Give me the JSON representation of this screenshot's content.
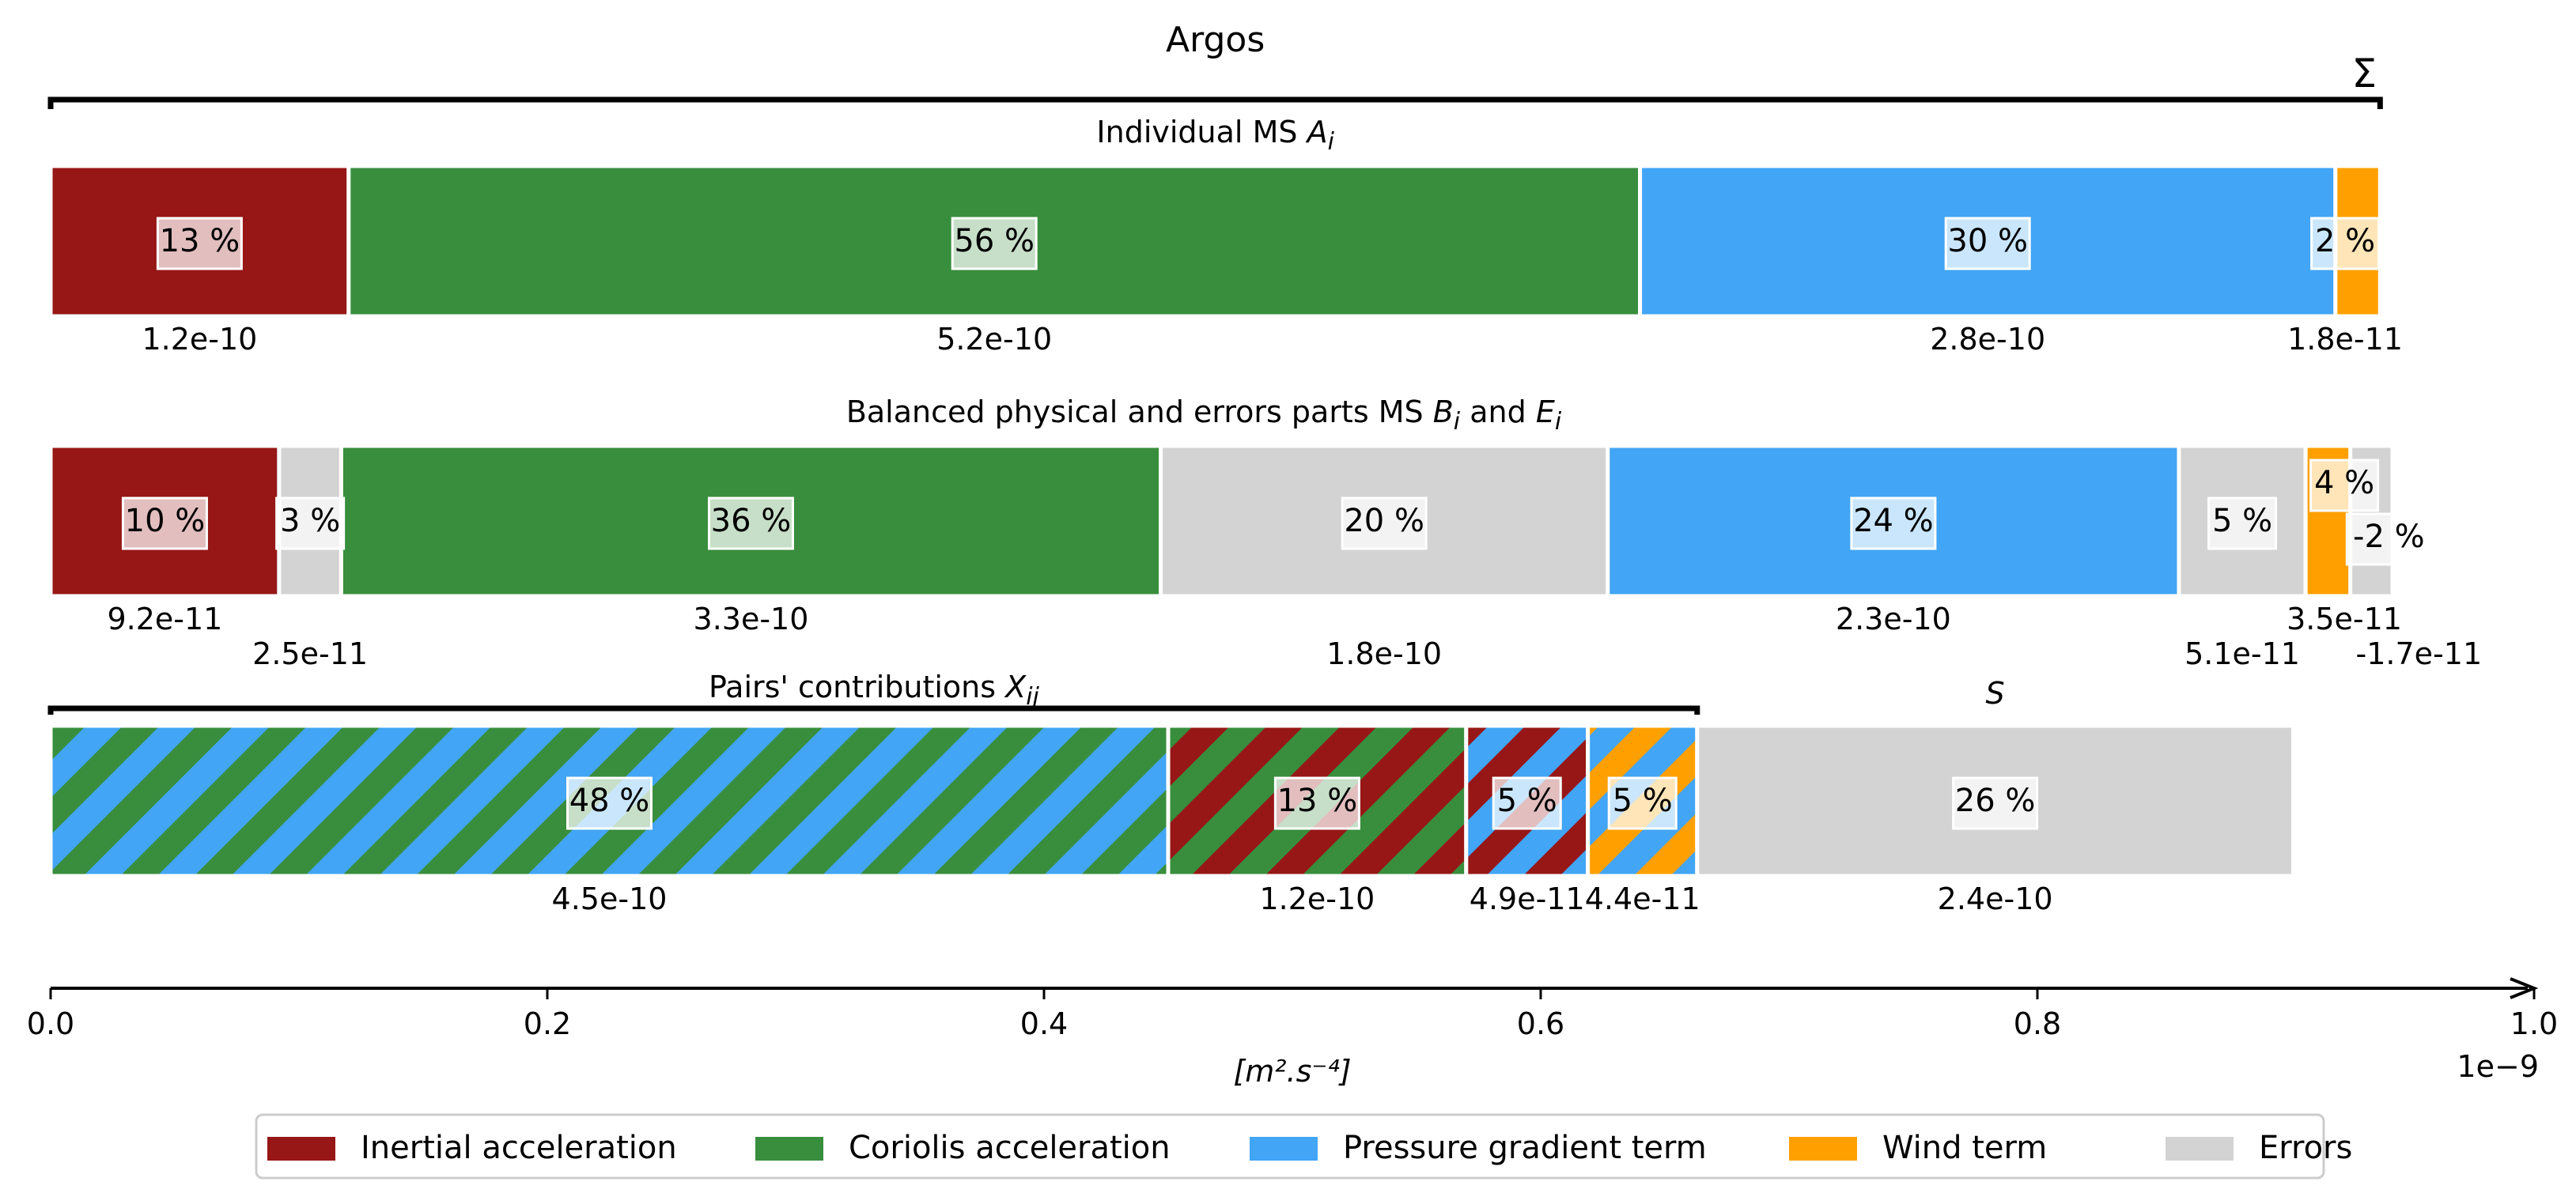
{
  "chart_data": {
    "type": "bar",
    "title": "Argos",
    "sigma_label": "Σ",
    "xlabel": "[m².s⁻⁴]",
    "x_offset_label": "1e−9",
    "xlim": [
      0,
      1e-09
    ],
    "xticks": [
      {
        "value": 0,
        "label": "0.0"
      },
      {
        "value": 2e-10,
        "label": "0.2"
      },
      {
        "value": 4e-10,
        "label": "0.4"
      },
      {
        "value": 6e-10,
        "label": "0.6"
      },
      {
        "value": 8e-10,
        "label": "0.8"
      },
      {
        "value": 1e-09,
        "label": "1.0"
      }
    ],
    "colors": {
      "inertial": "#971717",
      "coriolis": "#388e3c",
      "pressure": "#42a5f5",
      "wind": "#ffa000",
      "errors": "#d3d3d3"
    },
    "rows": [
      {
        "title": "Individual MS A_i",
        "segments": [
          {
            "colors": [
              "inertial"
            ],
            "value": 1.2e-10,
            "pct": "13 %",
            "label": "1.2e-10"
          },
          {
            "colors": [
              "coriolis"
            ],
            "value": 5.2e-10,
            "pct": "56 %",
            "label": "5.2e-10"
          },
          {
            "colors": [
              "pressure"
            ],
            "value": 2.8e-10,
            "pct": "30 %",
            "label": "2.8e-10"
          },
          {
            "colors": [
              "wind"
            ],
            "value": 1.8e-11,
            "pct": "2 %",
            "label": "1.8e-11"
          }
        ]
      },
      {
        "title": "Balanced physical and errors parts MS B_i and E_i",
        "segments": [
          {
            "colors": [
              "inertial"
            ],
            "value": 9.2e-11,
            "pct": "10 %",
            "label": "9.2e-11"
          },
          {
            "colors": [
              "errors"
            ],
            "value": 2.5e-11,
            "pct": "3 %",
            "label": "2.5e-11"
          },
          {
            "colors": [
              "coriolis"
            ],
            "value": 3.3e-10,
            "pct": "36 %",
            "label": "3.3e-10"
          },
          {
            "colors": [
              "errors"
            ],
            "value": 1.8e-10,
            "pct": "20 %",
            "label": "1.8e-10"
          },
          {
            "colors": [
              "pressure"
            ],
            "value": 2.3e-10,
            "pct": "24 %",
            "label": "2.3e-10"
          },
          {
            "colors": [
              "errors"
            ],
            "value": 5.1e-11,
            "pct": "5 %",
            "label": "5.1e-11"
          },
          {
            "colors": [
              "wind"
            ],
            "value": 3.5e-11,
            "pct": "4 %",
            "label": "3.5e-11"
          },
          {
            "colors": [
              "errors"
            ],
            "value": -1.7e-11,
            "pct": "-2 %",
            "label": "-1.7e-11"
          }
        ]
      },
      {
        "title": "Pairs' contributions X_ij",
        "extra_title": "S",
        "segments": [
          {
            "colors": [
              "pressure",
              "coriolis"
            ],
            "value": 4.5e-10,
            "pct": "48 %",
            "label": "4.5e-10"
          },
          {
            "colors": [
              "inertial",
              "coriolis"
            ],
            "value": 1.2e-10,
            "pct": "13 %",
            "label": "1.2e-10"
          },
          {
            "colors": [
              "pressure",
              "inertial"
            ],
            "value": 4.9e-11,
            "pct": "5 %",
            "label": "4.9e-11"
          },
          {
            "colors": [
              "wind",
              "pressure"
            ],
            "value": 4.4e-11,
            "pct": "5 %",
            "label": "4.4e-11"
          },
          {
            "colors": [
              "errors"
            ],
            "value": 2.4e-10,
            "pct": "26 %",
            "label": "2.4e-10"
          }
        ]
      }
    ],
    "legend": {
      "placement": "bottom-center",
      "items": [
        {
          "key": "inertial",
          "label": "Inertial acceleration"
        },
        {
          "key": "coriolis",
          "label": "Coriolis acceleration"
        },
        {
          "key": "pressure",
          "label": "Pressure gradient term"
        },
        {
          "key": "wind",
          "label": "Wind term"
        },
        {
          "key": "errors",
          "label": "Errors"
        }
      ]
    }
  }
}
